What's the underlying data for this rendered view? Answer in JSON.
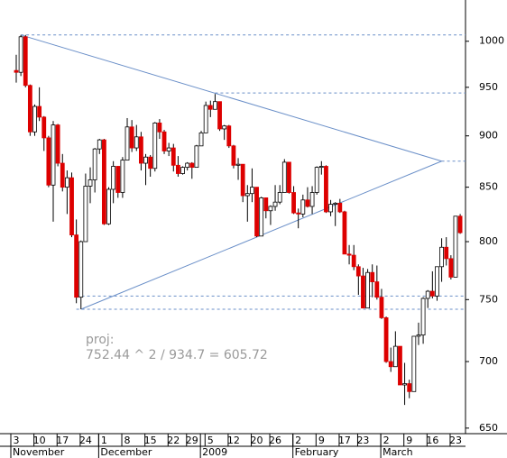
{
  "chart_data": {
    "type": "candlestick",
    "log_scale": true,
    "ylim": [
      646,
      1047
    ],
    "yticks": [
      650,
      700,
      750,
      800,
      850,
      900,
      950,
      1000
    ],
    "up_color": "#ffffff",
    "down_color": "#dd0000",
    "line_color": "#6a8fc8",
    "categories": [
      "3",
      null,
      null,
      null,
      null,
      "10",
      null,
      null,
      null,
      null,
      "17",
      null,
      null,
      null,
      null,
      "24",
      null,
      null,
      null,
      "1",
      null,
      null,
      null,
      null,
      "8",
      null,
      null,
      null,
      null,
      "15",
      null,
      null,
      null,
      null,
      "22",
      null,
      null,
      null,
      "29",
      null,
      null,
      null,
      "5",
      null,
      null,
      null,
      null,
      "12",
      null,
      null,
      null,
      null,
      "20",
      null,
      null,
      null,
      "26",
      null,
      null,
      null,
      null,
      "2",
      null,
      null,
      null,
      null,
      "9",
      null,
      null,
      null,
      null,
      "17",
      null,
      null,
      null,
      "23",
      null,
      null,
      null,
      null,
      "2",
      null,
      null,
      null,
      null,
      "9",
      null,
      null,
      null,
      null,
      "16",
      null,
      null,
      null,
      null,
      "23",
      null
    ],
    "months": [
      {
        "label": "November",
        "start": 0
      },
      {
        "label": "December",
        "start": 19
      },
      {
        "label": "2009",
        "start": 41
      },
      {
        "label": "February",
        "start": 61
      },
      {
        "label": "March",
        "start": 80
      }
    ],
    "open": [
      968,
      966,
      1005,
      952,
      904,
      930,
      919,
      898,
      852,
      911,
      873,
      850,
      859,
      806,
      752,
      800,
      851,
      857,
      887,
      896,
      816,
      848,
      870,
      845,
      876,
      909,
      888,
      899,
      873,
      879,
      868,
      913,
      904,
      885,
      888,
      871,
      863,
      869,
      873,
      869,
      890,
      903,
      931,
      927,
      935,
      907,
      910,
      890,
      871,
      872,
      842,
      844,
      850,
      805,
      840,
      828,
      832,
      836,
      845,
      874,
      845,
      826,
      825,
      838,
      832,
      845,
      869,
      870,
      827,
      834,
      835,
      827,
      789,
      788,
      778,
      770,
      743,
      773,
      765,
      752,
      735,
      700,
      696,
      712,
      682,
      683,
      677,
      720,
      721,
      751,
      757,
      753,
      778,
      795,
      785,
      769,
      823
    ],
    "high": [
      985,
      1007,
      1007,
      953,
      932,
      950,
      920,
      900,
      915,
      912,
      882,
      866,
      864,
      820,
      801,
      863,
      869,
      888,
      897,
      897,
      850,
      875,
      870,
      879,
      918,
      916,
      911,
      904,
      882,
      881,
      914,
      917,
      906,
      893,
      892,
      880,
      870,
      874,
      874,
      891,
      905,
      935,
      936,
      943,
      935,
      911,
      911,
      891,
      878,
      872,
      852,
      868,
      850,
      841,
      840,
      833,
      852,
      852,
      877,
      874,
      851,
      830,
      843,
      850,
      851,
      870,
      875,
      871,
      838,
      836,
      839,
      828,
      797,
      797,
      780,
      777,
      776,
      780,
      779,
      759,
      736,
      711,
      724,
      712,
      699,
      686,
      720,
      731,
      752,
      758,
      774,
      778,
      803,
      804,
      788,
      823,
      825
    ],
    "low": [
      955,
      962,
      950,
      900,
      900,
      915,
      885,
      850,
      818,
      870,
      846,
      825,
      804,
      747,
      742,
      800,
      835,
      845,
      882,
      815,
      815,
      835,
      840,
      840,
      876,
      884,
      885,
      866,
      852,
      860,
      865,
      897,
      882,
      880,
      865,
      860,
      862,
      866,
      858,
      869,
      890,
      903,
      919,
      927,
      905,
      896,
      888,
      868,
      857,
      836,
      818,
      836,
      804,
      805,
      821,
      815,
      828,
      834,
      845,
      844,
      825,
      812,
      822,
      831,
      825,
      843,
      862,
      826,
      823,
      814,
      826,
      789,
      780,
      775,
      754,
      743,
      743,
      752,
      750,
      734,
      699,
      692,
      696,
      682,
      667,
      672,
      677,
      713,
      714,
      743,
      751,
      749,
      765,
      779,
      767,
      769,
      807
    ],
    "close": [
      966,
      1005,
      952,
      904,
      930,
      919,
      898,
      852,
      911,
      873,
      850,
      859,
      806,
      752,
      800,
      851,
      857,
      887,
      896,
      816,
      848,
      870,
      845,
      876,
      909,
      888,
      899,
      873,
      879,
      868,
      913,
      904,
      885,
      888,
      871,
      863,
      869,
      873,
      869,
      890,
      903,
      931,
      927,
      935,
      907,
      910,
      890,
      871,
      872,
      842,
      844,
      850,
      805,
      840,
      828,
      832,
      836,
      845,
      874,
      845,
      826,
      825,
      838,
      832,
      845,
      869,
      870,
      827,
      834,
      835,
      827,
      789,
      788,
      778,
      770,
      743,
      773,
      765,
      752,
      735,
      700,
      696,
      712,
      682,
      683,
      677,
      720,
      721,
      751,
      757,
      753,
      778,
      795,
      785,
      769,
      823,
      808
    ],
    "trendlines": [
      {
        "x": [
          1,
          92
        ],
        "y": [
          1007,
          875
        ]
      },
      {
        "x": [
          14,
          92
        ],
        "y": [
          742,
          875
        ]
      }
    ],
    "hlines": [
      {
        "y": 1007,
        "x": 1
      },
      {
        "y": 944,
        "x": 43
      },
      {
        "y": 875,
        "x": 92
      },
      {
        "y": 753,
        "x": 13
      },
      {
        "y": 742,
        "x": 13
      }
    ],
    "annotation": [
      "proj:",
      "752.44 ^ 2 / 934.7 = 605.72"
    ]
  }
}
